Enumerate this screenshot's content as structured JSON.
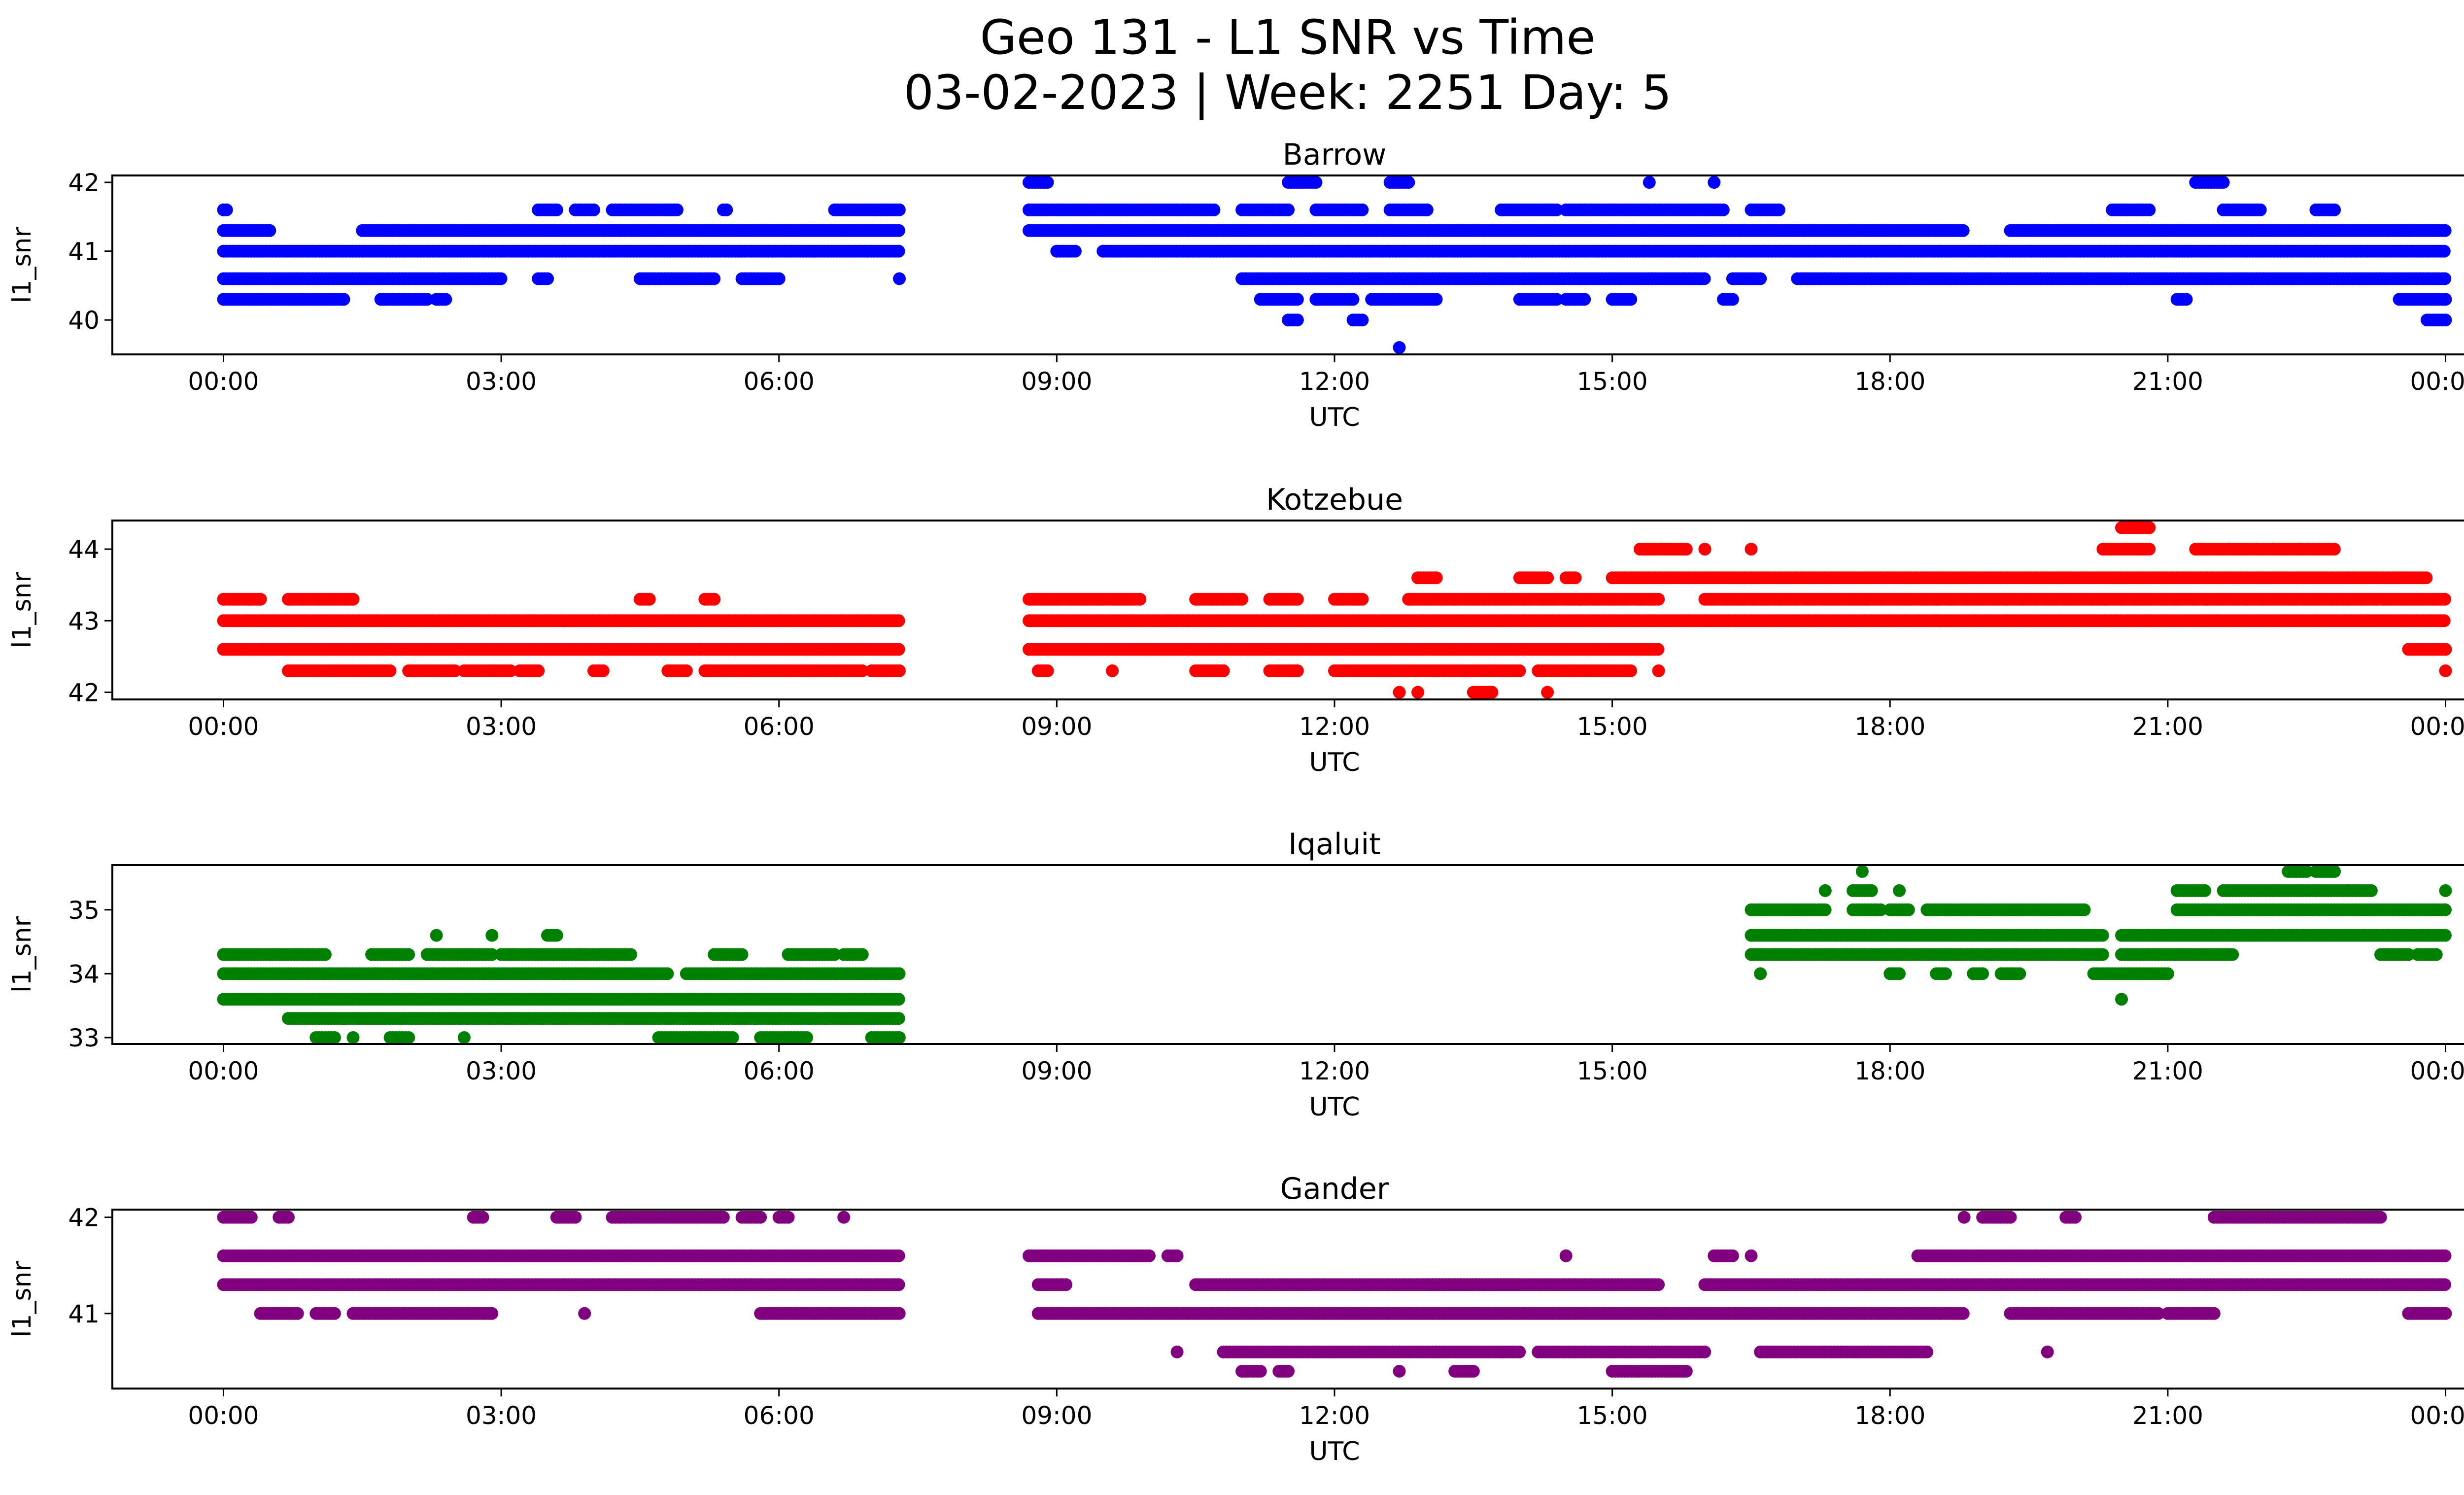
{
  "title": "Geo 131 - L1 SNR vs Time",
  "subtitle": "03-02-2023 | Week: 2251 Day: 5",
  "chart_data": [
    {
      "type": "scatter",
      "title": "Barrow",
      "xlabel": "UTC",
      "ylabel": "l1_snr",
      "color": "#0000ff",
      "xticks": [
        "00:00",
        "03:00",
        "06:00",
        "09:00",
        "12:00",
        "15:00",
        "18:00",
        "21:00",
        "00:00"
      ],
      "xlim_hours": [
        -1.2,
        25.2
      ],
      "yticks": [
        40,
        41,
        42
      ],
      "ylim": [
        39.5,
        42.1
      ],
      "levels": [
        {
          "y": 41.6,
          "spans": [
            [
              0,
              0.05
            ],
            [
              3.4,
              3.6
            ],
            [
              3.8,
              4.0
            ],
            [
              4.2,
              4.9
            ],
            [
              5.4,
              5.45
            ],
            [
              6.6,
              7.3
            ],
            [
              8.7,
              10.7
            ],
            [
              11.0,
              11.5
            ],
            [
              11.8,
              12.3
            ],
            [
              12.6,
              13.0
            ],
            [
              13.8,
              14.4
            ],
            [
              14.5,
              16.2
            ],
            [
              16.5,
              16.8
            ],
            [
              20.4,
              20.8
            ],
            [
              21.6,
              22.0
            ],
            [
              22.6,
              22.8
            ]
          ]
        },
        {
          "y": 41.3,
          "spans": [
            [
              0,
              0.5
            ],
            [
              1.5,
              7.3
            ],
            [
              8.7,
              18.8
            ],
            [
              19.3,
              24.0
            ]
          ]
        },
        {
          "y": 41.0,
          "spans": [
            [
              0,
              7.3
            ],
            [
              9.0,
              9.2
            ],
            [
              9.5,
              24.0
            ]
          ]
        },
        {
          "y": 40.6,
          "spans": [
            [
              0,
              3.0
            ],
            [
              3.4,
              3.5
            ],
            [
              4.5,
              5.3
            ],
            [
              5.6,
              6.0
            ],
            [
              7.3,
              7.3
            ],
            [
              11.0,
              16.0
            ],
            [
              16.3,
              16.6
            ],
            [
              17.0,
              24.0
            ]
          ]
        },
        {
          "y": 40.3,
          "spans": [
            [
              0,
              1.3
            ],
            [
              1.7,
              2.2
            ],
            [
              2.3,
              2.4
            ],
            [
              11.2,
              11.6
            ],
            [
              11.8,
              12.2
            ],
            [
              12.4,
              13.1
            ],
            [
              14.0,
              14.4
            ],
            [
              14.5,
              14.7
            ],
            [
              15.0,
              15.2
            ],
            [
              16.2,
              16.3
            ],
            [
              21.1,
              21.2
            ],
            [
              23.5,
              24.0
            ]
          ]
        },
        {
          "y": 40.0,
          "spans": [
            [
              11.5,
              11.6
            ],
            [
              12.2,
              12.3
            ],
            [
              23.8,
              24.0
            ]
          ]
        },
        {
          "y": 42.0,
          "spans": [
            [
              8.7,
              8.9
            ],
            [
              11.5,
              11.8
            ],
            [
              12.6,
              12.8
            ],
            [
              15.4,
              15.4
            ],
            [
              16.1,
              16.1
            ],
            [
              21.3,
              21.6
            ]
          ]
        },
        {
          "y": 39.6,
          "spans": [
            [
              12.7,
              12.7
            ]
          ]
        }
      ]
    },
    {
      "type": "scatter",
      "title": "Kotzebue",
      "xlabel": "UTC",
      "ylabel": "l1_snr",
      "color": "#ff0000",
      "xticks": [
        "00:00",
        "03:00",
        "06:00",
        "09:00",
        "12:00",
        "15:00",
        "18:00",
        "21:00",
        "00:00"
      ],
      "xlim_hours": [
        -1.2,
        25.2
      ],
      "yticks": [
        42,
        43,
        44
      ],
      "ylim": [
        41.9,
        44.4
      ],
      "levels": [
        {
          "y": 43.3,
          "spans": [
            [
              0,
              0.4
            ],
            [
              0.7,
              1.4
            ],
            [
              4.5,
              4.6
            ],
            [
              5.2,
              5.3
            ],
            [
              8.7,
              9.9
            ],
            [
              10.5,
              11.0
            ],
            [
              11.3,
              11.6
            ],
            [
              12.0,
              12.3
            ],
            [
              12.8,
              15.5
            ],
            [
              16.0,
              24.0
            ]
          ]
        },
        {
          "y": 43.0,
          "spans": [
            [
              0,
              7.3
            ],
            [
              8.7,
              24.0
            ]
          ]
        },
        {
          "y": 42.6,
          "spans": [
            [
              0,
              7.3
            ],
            [
              8.7,
              15.5
            ],
            [
              23.6,
              24.0
            ]
          ]
        },
        {
          "y": 42.3,
          "spans": [
            [
              0.7,
              1.8
            ],
            [
              2.0,
              2.5
            ],
            [
              2.6,
              3.1
            ],
            [
              3.2,
              3.4
            ],
            [
              4.0,
              4.1
            ],
            [
              4.8,
              5.0
            ],
            [
              5.2,
              6.9
            ],
            [
              7.0,
              7.3
            ],
            [
              8.8,
              8.9
            ],
            [
              9.6,
              9.6
            ],
            [
              10.5,
              10.8
            ],
            [
              11.3,
              11.6
            ],
            [
              12.0,
              14.0
            ],
            [
              14.2,
              15.2
            ],
            [
              15.5,
              15.5
            ],
            [
              24.0,
              24.0
            ]
          ]
        },
        {
          "y": 43.6,
          "spans": [
            [
              12.9,
              13.1
            ],
            [
              14.0,
              14.3
            ],
            [
              14.5,
              14.6
            ],
            [
              15.0,
              23.8
            ]
          ]
        },
        {
          "y": 44.0,
          "spans": [
            [
              15.3,
              15.8
            ],
            [
              16.0,
              16.0
            ],
            [
              16.5,
              16.5
            ],
            [
              20.3,
              20.8
            ],
            [
              21.3,
              22.8
            ]
          ]
        },
        {
          "y": 44.3,
          "spans": [
            [
              20.5,
              20.8
            ]
          ]
        },
        {
          "y": 42.0,
          "spans": [
            [
              12.7,
              12.7
            ],
            [
              12.9,
              12.9
            ],
            [
              13.5,
              13.7
            ],
            [
              14.3,
              14.3
            ]
          ]
        }
      ]
    },
    {
      "type": "scatter",
      "title": "Iqaluit",
      "xlabel": "UTC",
      "ylabel": "l1_snr",
      "color": "#008000",
      "xticks": [
        "00:00",
        "03:00",
        "06:00",
        "09:00",
        "12:00",
        "15:00",
        "18:00",
        "21:00",
        "00:00"
      ],
      "xlim_hours": [
        -1.2,
        25.2
      ],
      "yticks": [
        33,
        34,
        35
      ],
      "ylim": [
        32.9,
        35.7
      ],
      "levels": [
        {
          "y": 34.3,
          "spans": [
            [
              0,
              1.1
            ],
            [
              1.6,
              2.0
            ],
            [
              2.2,
              2.9
            ],
            [
              3.0,
              4.4
            ],
            [
              5.3,
              5.6
            ],
            [
              6.1,
              6.6
            ],
            [
              6.7,
              6.9
            ],
            [
              16.5,
              20.3
            ],
            [
              20.5,
              21.7
            ],
            [
              23.3,
              23.6
            ],
            [
              23.7,
              23.9
            ]
          ]
        },
        {
          "y": 34.0,
          "spans": [
            [
              0,
              4.8
            ],
            [
              5.0,
              7.3
            ],
            [
              16.6,
              16.6
            ],
            [
              18.0,
              18.1
            ],
            [
              18.5,
              18.6
            ],
            [
              18.9,
              19.0
            ],
            [
              19.2,
              19.4
            ],
            [
              20.2,
              21.0
            ]
          ]
        },
        {
          "y": 33.6,
          "spans": [
            [
              0,
              7.3
            ],
            [
              20.5,
              20.5
            ]
          ]
        },
        {
          "y": 33.3,
          "spans": [
            [
              0.7,
              7.3
            ]
          ]
        },
        {
          "y": 33.0,
          "spans": [
            [
              1.0,
              1.2
            ],
            [
              1.4,
              1.4
            ],
            [
              1.8,
              2.0
            ],
            [
              2.6,
              2.6
            ],
            [
              4.7,
              5.5
            ],
            [
              5.8,
              6.3
            ],
            [
              7.0,
              7.3
            ]
          ]
        },
        {
          "y": 34.6,
          "spans": [
            [
              2.3,
              2.3
            ],
            [
              2.9,
              2.9
            ],
            [
              3.5,
              3.6
            ],
            [
              16.5,
              20.3
            ],
            [
              20.5,
              24.0
            ]
          ]
        },
        {
          "y": 35.0,
          "spans": [
            [
              16.5,
              17.3
            ],
            [
              17.6,
              17.9
            ],
            [
              18.0,
              18.2
            ],
            [
              18.4,
              20.1
            ],
            [
              21.1,
              24.0
            ]
          ]
        },
        {
          "y": 35.3,
          "spans": [
            [
              17.3,
              17.3
            ],
            [
              17.6,
              17.8
            ],
            [
              18.1,
              18.1
            ],
            [
              21.1,
              21.4
            ],
            [
              21.6,
              23.2
            ],
            [
              24.0,
              24.0
            ]
          ]
        },
        {
          "y": 35.6,
          "spans": [
            [
              17.7,
              17.7
            ],
            [
              22.3,
              22.5
            ],
            [
              22.6,
              22.8
            ]
          ]
        }
      ]
    },
    {
      "type": "scatter",
      "title": "Gander",
      "xlabel": "UTC",
      "ylabel": "l1_snr",
      "color": "#800080",
      "xticks": [
        "00:00",
        "03:00",
        "06:00",
        "09:00",
        "12:00",
        "15:00",
        "18:00",
        "21:00",
        "00:00"
      ],
      "xlim_hours": [
        -1.2,
        25.2
      ],
      "yticks": [
        41,
        42
      ],
      "ylim": [
        40.22,
        42.08
      ],
      "levels": [
        {
          "y": 42.0,
          "spans": [
            [
              0,
              0.3
            ],
            [
              0.6,
              0.7
            ],
            [
              2.7,
              2.8
            ],
            [
              3.6,
              3.8
            ],
            [
              4.2,
              5.4
            ],
            [
              5.6,
              5.8
            ],
            [
              6.0,
              6.1
            ],
            [
              6.7,
              6.7
            ],
            [
              18.8,
              18.8
            ],
            [
              19.0,
              19.3
            ],
            [
              19.9,
              20.0
            ],
            [
              21.5,
              23.3
            ]
          ]
        },
        {
          "y": 41.6,
          "spans": [
            [
              0,
              7.3
            ],
            [
              8.7,
              10.0
            ],
            [
              10.2,
              10.3
            ],
            [
              14.5,
              14.5
            ],
            [
              16.1,
              16.3
            ],
            [
              16.5,
              16.5
            ],
            [
              18.3,
              24.0
            ]
          ]
        },
        {
          "y": 41.3,
          "spans": [
            [
              0,
              7.3
            ],
            [
              8.8,
              9.1
            ],
            [
              10.5,
              14.0
            ],
            [
              13.0,
              15.5
            ],
            [
              16.0,
              24.0
            ]
          ]
        },
        {
          "y": 41.0,
          "spans": [
            [
              0.4,
              0.8
            ],
            [
              1.0,
              1.2
            ],
            [
              1.4,
              2.9
            ],
            [
              3.9,
              3.9
            ],
            [
              5.8,
              7.3
            ],
            [
              8.8,
              18.8
            ],
            [
              19.3,
              20.9
            ],
            [
              21.0,
              21.5
            ],
            [
              23.6,
              24.0
            ]
          ]
        },
        {
          "y": 40.6,
          "spans": [
            [
              10.3,
              10.3
            ],
            [
              10.8,
              14.0
            ],
            [
              14.2,
              16.0
            ],
            [
              16.6,
              18.4
            ],
            [
              19.7,
              19.7
            ]
          ]
        },
        {
          "y": 40.4,
          "spans": [
            [
              11.0,
              11.2
            ],
            [
              11.4,
              11.5
            ],
            [
              12.7,
              12.7
            ],
            [
              13.3,
              13.5
            ],
            [
              15.0,
              15.8
            ]
          ]
        }
      ]
    }
  ]
}
